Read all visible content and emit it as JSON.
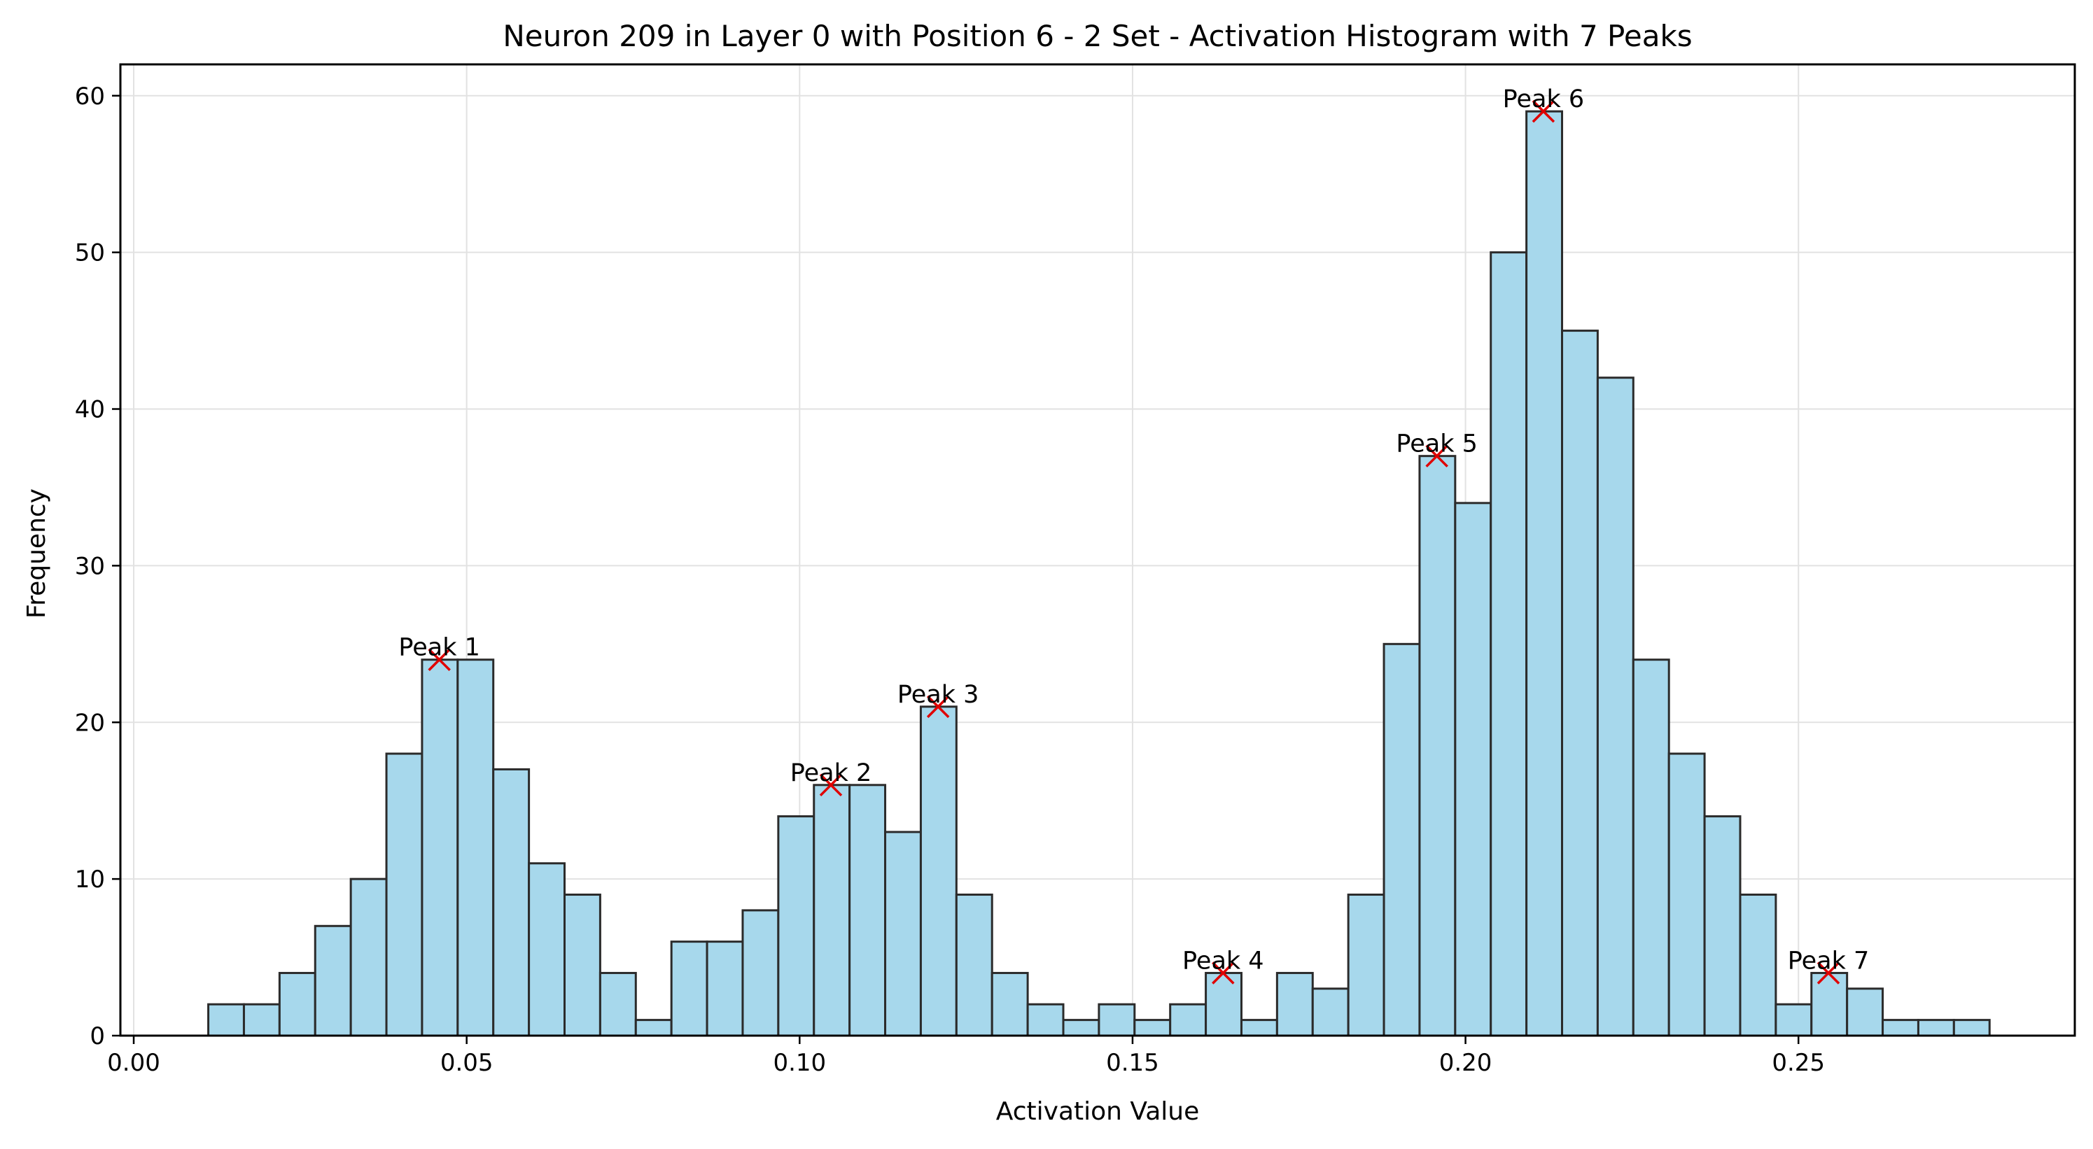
{
  "chart_data": {
    "type": "bar",
    "title": "Neuron 209 in Layer 0 with Position 6 - 2 Set - Activation Histogram with 7 Peaks",
    "xlabel": "Activation Value",
    "ylabel": "Frequency",
    "xlim": [
      -0.002,
      0.2915
    ],
    "ylim": [
      0,
      62
    ],
    "grid": true,
    "bin_start": 0.0112,
    "bin_width": 0.00535,
    "values": [
      2,
      2,
      4,
      7,
      10,
      18,
      24,
      24,
      17,
      11,
      9,
      4,
      1,
      6,
      6,
      8,
      14,
      16,
      16,
      13,
      21,
      9,
      4,
      2,
      1,
      2,
      1,
      2,
      4,
      1,
      4,
      3,
      9,
      25,
      37,
      34,
      50,
      59,
      45,
      42,
      24,
      18,
      14,
      9,
      2,
      4,
      3,
      1,
      1,
      1
    ],
    "x_ticks": [
      {
        "value": 0.0,
        "label": "0.00"
      },
      {
        "value": 0.05,
        "label": "0.05"
      },
      {
        "value": 0.1,
        "label": "0.10"
      },
      {
        "value": 0.15,
        "label": "0.15"
      },
      {
        "value": 0.2,
        "label": "0.20"
      },
      {
        "value": 0.25,
        "label": "0.25"
      }
    ],
    "y_ticks": [
      {
        "value": 0,
        "label": "0"
      },
      {
        "value": 10,
        "label": "10"
      },
      {
        "value": 20,
        "label": "20"
      },
      {
        "value": 30,
        "label": "30"
      },
      {
        "value": 40,
        "label": "40"
      },
      {
        "value": 50,
        "label": "50"
      },
      {
        "value": 60,
        "label": "60"
      }
    ],
    "peaks": [
      {
        "label": "Peak 1",
        "x": 0.0459,
        "y": 24
      },
      {
        "label": "Peak 2",
        "x": 0.1047,
        "y": 16
      },
      {
        "label": "Peak 3",
        "x": 0.1208,
        "y": 21
      },
      {
        "label": "Peak 4",
        "x": 0.1636,
        "y": 4
      },
      {
        "label": "Peak 5",
        "x": 0.1957,
        "y": 37
      },
      {
        "label": "Peak 6",
        "x": 0.2117,
        "y": 59
      },
      {
        "label": "Peak 7",
        "x": 0.2545,
        "y": 4
      }
    ],
    "colors": {
      "bar_fill": "#a7d8ec",
      "bar_edge": "#2b2b2b",
      "peak_marker": "#e00000",
      "grid": "#e2e2e2",
      "axis": "#000000"
    }
  }
}
